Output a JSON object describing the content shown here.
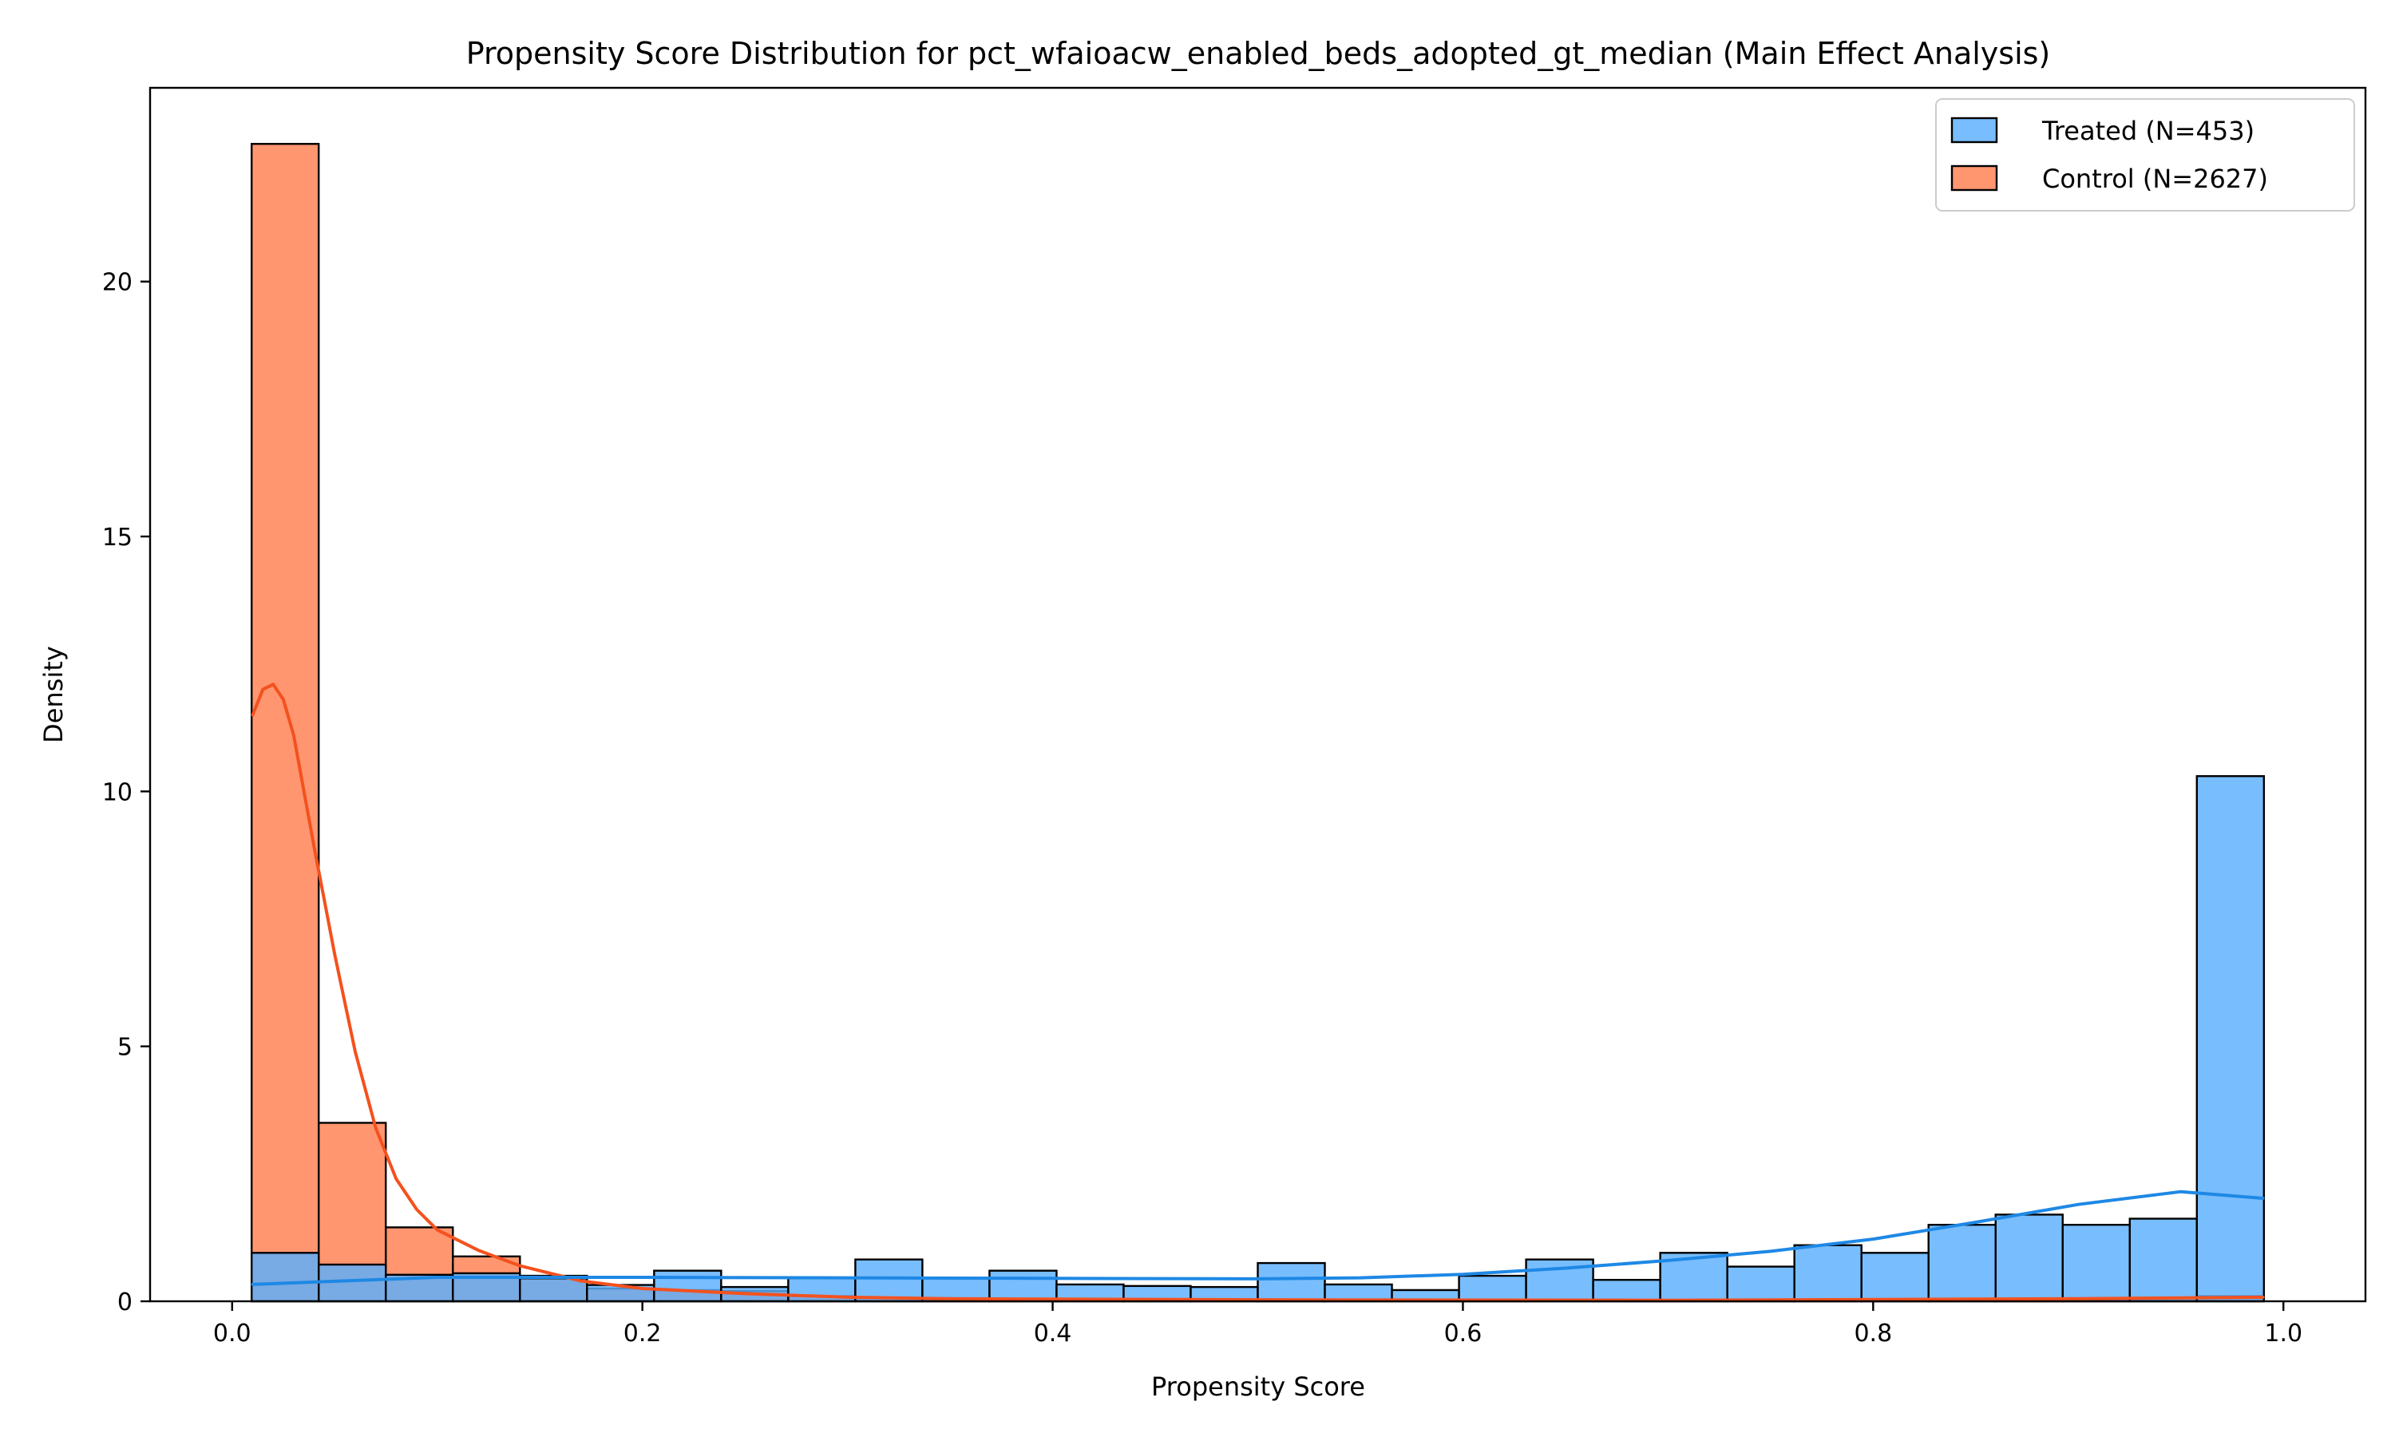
{
  "chart_data": {
    "type": "bar",
    "title": "Propensity Score Distribution for pct_wfaioacw_enabled_beds_adopted_gt_median (Main Effect Analysis)",
    "xlabel": "Propensity Score",
    "ylabel": "Density",
    "xlim": [
      -0.04,
      1.04
    ],
    "ylim": [
      0,
      23.8
    ],
    "xticks": [
      0.0,
      0.2,
      0.4,
      0.6,
      0.8,
      1.0
    ],
    "xtick_labels": [
      "0.0",
      "0.2",
      "0.4",
      "0.6",
      "0.8",
      "1.0"
    ],
    "yticks": [
      0,
      5,
      10,
      15,
      20
    ],
    "ytick_labels": [
      "0",
      "5",
      "10",
      "15",
      "20"
    ],
    "legend_position": "top-right",
    "grid": false,
    "bin_edges": [
      0.0095,
      0.0422,
      0.0749,
      0.1076,
      0.1403,
      0.173,
      0.2057,
      0.2384,
      0.2711,
      0.3038,
      0.3365,
      0.3692,
      0.4019,
      0.4346,
      0.4673,
      0.5,
      0.5327,
      0.5654,
      0.5981,
      0.6308,
      0.6635,
      0.6962,
      0.7289,
      0.7616,
      0.7943,
      0.827,
      0.8597,
      0.8924,
      0.9251,
      0.9578,
      0.9905
    ],
    "series": [
      {
        "name": "Treated (N=453)",
        "color": "#5aaefc",
        "kde_color": "#1e88e5",
        "values": [
          0.95,
          0.72,
          0.52,
          0.55,
          0.45,
          0.32,
          0.6,
          0.28,
          0.45,
          0.82,
          0.45,
          0.6,
          0.33,
          0.3,
          0.28,
          0.75,
          0.33,
          0.22,
          0.5,
          0.82,
          0.42,
          0.95,
          0.68,
          1.1,
          0.95,
          1.5,
          1.7,
          1.5,
          1.62,
          10.3
        ],
        "kde": {
          "x": [
            0.01,
            0.1,
            0.2,
            0.3,
            0.4,
            0.5,
            0.55,
            0.6,
            0.65,
            0.7,
            0.75,
            0.8,
            0.85,
            0.9,
            0.95,
            0.99
          ],
          "y": [
            0.33,
            0.47,
            0.47,
            0.46,
            0.45,
            0.44,
            0.46,
            0.53,
            0.65,
            0.8,
            0.98,
            1.22,
            1.55,
            1.9,
            2.15,
            2.02
          ]
        }
      },
      {
        "name": "Control (N=2627)",
        "color": "#ff7f50",
        "kde_color": "#f4511e",
        "values": [
          22.7,
          3.5,
          1.45,
          0.88,
          0.5,
          0.25,
          0.22,
          0.2,
          0.1,
          0.07,
          0.05,
          0.05,
          0.04,
          0.03,
          0.03,
          0.03,
          0.03,
          0.02,
          0.02,
          0.02,
          0.02,
          0.02,
          0.02,
          0.02,
          0.03,
          0.03,
          0.04,
          0.05,
          0.07,
          0.1
        ],
        "kde": {
          "x": [
            0.01,
            0.015,
            0.02,
            0.025,
            0.03,
            0.035,
            0.04,
            0.05,
            0.06,
            0.07,
            0.08,
            0.09,
            0.1,
            0.12,
            0.14,
            0.17,
            0.2,
            0.25,
            0.3,
            0.35,
            0.5,
            0.7,
            0.9,
            0.99
          ],
          "y": [
            11.5,
            12.0,
            12.1,
            11.8,
            11.1,
            10.0,
            8.9,
            6.8,
            4.9,
            3.4,
            2.4,
            1.8,
            1.4,
            1.0,
            0.7,
            0.4,
            0.25,
            0.15,
            0.08,
            0.05,
            0.03,
            0.02,
            0.05,
            0.08
          ]
        }
      }
    ]
  }
}
